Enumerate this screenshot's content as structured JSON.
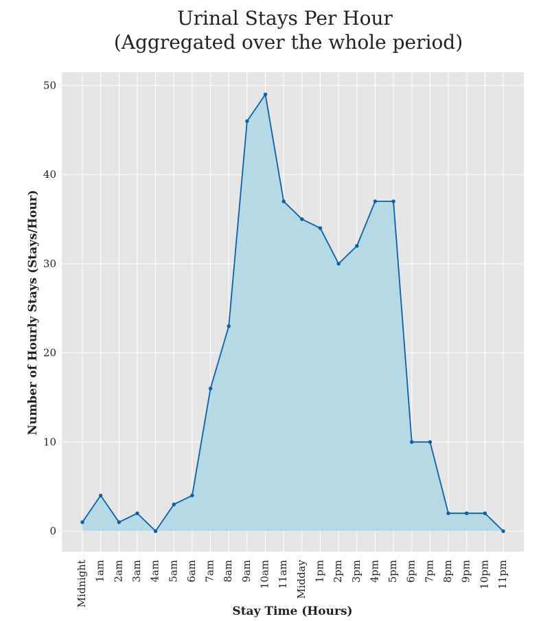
{
  "chart_data": {
    "type": "area",
    "title_line1": "Urinal Stays Per Hour",
    "title_line2": "(Aggregated over the whole period)",
    "xlabel": "Stay Time (Hours)",
    "ylabel": "Number of Hourly Stays (Stays/Hour)",
    "categories": [
      "Midnight",
      "1am",
      "2am",
      "3am",
      "4am",
      "5am",
      "6am",
      "7am",
      "8am",
      "9am",
      "10am",
      "11am",
      "Midday",
      "1pm",
      "2pm",
      "3pm",
      "4pm",
      "5pm",
      "6pm",
      "7pm",
      "8pm",
      "9pm",
      "10pm",
      "11pm"
    ],
    "values": [
      1,
      4,
      1,
      2,
      0,
      3,
      4,
      16,
      23,
      46,
      49,
      37,
      35,
      34,
      30,
      32,
      37,
      37,
      10,
      10,
      2,
      2,
      2,
      0
    ],
    "yticks": [
      0,
      10,
      20,
      30,
      40,
      50
    ],
    "ylim": [
      -2.3,
      51.5
    ],
    "grid": true,
    "colors": {
      "panel_bg": "#e5e5e5",
      "grid": "#ffffff",
      "fill": "#add8e6",
      "line": "#0b5fa5"
    }
  }
}
